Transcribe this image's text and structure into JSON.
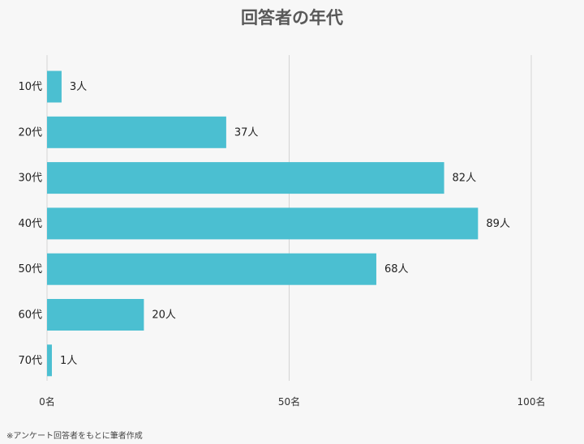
{
  "chart_data": {
    "type": "bar",
    "orientation": "horizontal",
    "title": "回答者の年代",
    "categories": [
      "10代",
      "20代",
      "30代",
      "40代",
      "50代",
      "60代",
      "70代"
    ],
    "values": [
      3,
      37,
      82,
      89,
      68,
      20,
      1
    ],
    "value_labels": [
      "3人",
      "37人",
      "82人",
      "89人",
      "68人",
      "20人",
      "1人"
    ],
    "xlim": [
      0,
      100
    ],
    "x_ticks": [
      0,
      50,
      100
    ],
    "x_tick_labels": [
      "0名",
      "50名",
      "100名"
    ],
    "xlabel": "",
    "ylabel": "",
    "grid": "vertical",
    "legend": "none",
    "bar_color": "#4bbfd1",
    "grid_color": "#d4d4d4"
  },
  "footer": {
    "note": "※アンケート回答者をもとに筆者作成"
  }
}
